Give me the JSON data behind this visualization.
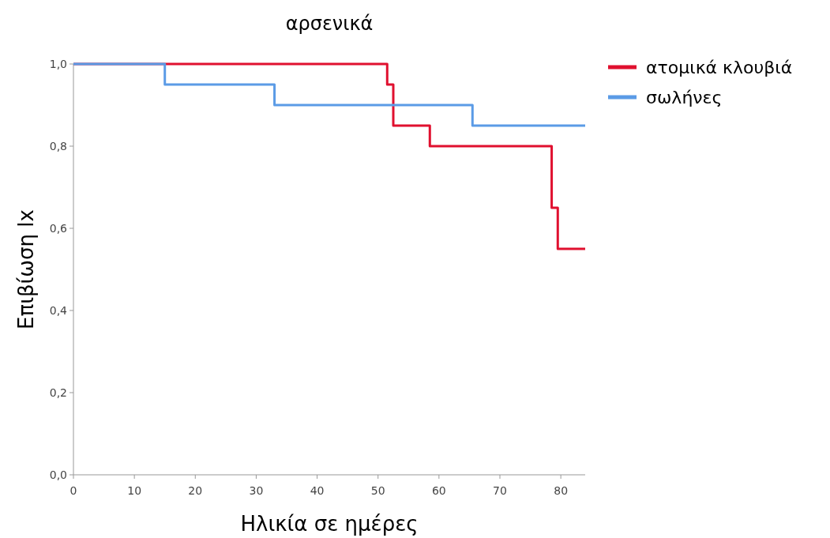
{
  "chart_data": {
    "type": "step",
    "title": "αρσενικά",
    "xlabel": "Ηλικία σε ημέρες",
    "ylabel": "Επιβίωση lx",
    "series": [
      {
        "name": "ατομικά κλουβιά",
        "color": "#e0102f",
        "x": [
          0,
          51.5,
          52.5,
          58.5,
          78.5,
          79.5,
          84
        ],
        "values": [
          1,
          0.95,
          0.85,
          0.8,
          0.65,
          0.55,
          0.55
        ]
      },
      {
        "name": "σωλήνες",
        "color": "#5b9be6",
        "x": [
          0,
          15,
          33,
          65.5,
          84
        ],
        "values": [
          1,
          0.95,
          0.9,
          0.85,
          0.85
        ]
      }
    ],
    "xlim": [
      0,
      84
    ],
    "xticks": [
      0,
      10,
      20,
      30,
      40,
      50,
      60,
      70,
      80
    ],
    "ylim": [
      0,
      1
    ],
    "yticks": [
      {
        "value": 0,
        "label": "0,0"
      },
      {
        "value": 0.2,
        "label": "0,2"
      },
      {
        "value": 0.4,
        "label": "0,4"
      },
      {
        "value": 0.6,
        "label": "0,6"
      },
      {
        "value": 0.8,
        "label": "0,8"
      },
      {
        "value": 1,
        "label": "1,0"
      }
    ],
    "legend": "top right",
    "grid": false
  }
}
